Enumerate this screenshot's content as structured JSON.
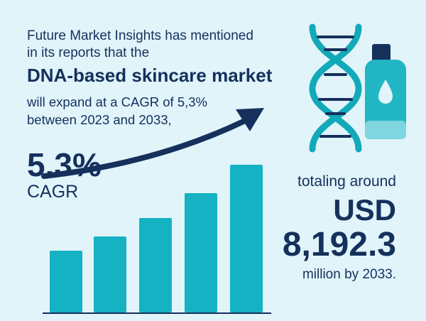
{
  "intro": {
    "lines": [
      "Future Market Insights has mentioned",
      "in its reports that the"
    ],
    "headline": "DNA-based skincare market",
    "details": [
      "will expand at a CAGR of 5,3%",
      "between 2023 and 2033,"
    ]
  },
  "cagr": {
    "value": "5.3%",
    "label": "CAGR"
  },
  "total": {
    "prefix": "totaling around",
    "currency": "USD",
    "amount": "8,192.3",
    "suffix": "million by 2033."
  }
}
